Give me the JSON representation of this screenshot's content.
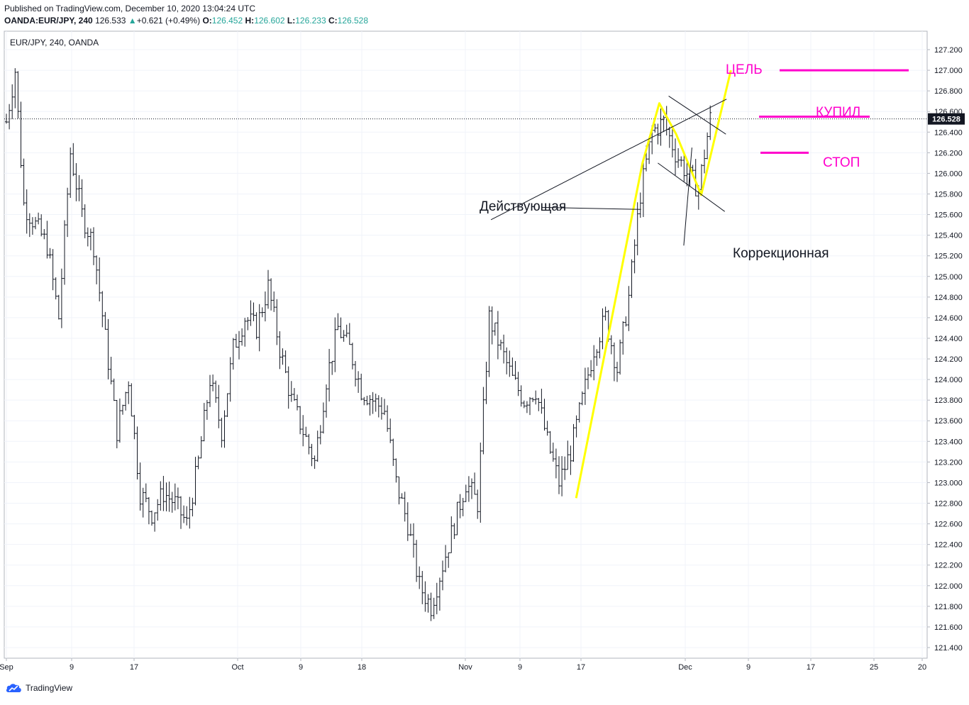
{
  "header": {
    "published": "Published on TradingView.com, December 10, 2020 13:04:24 UTC",
    "symbol": "OANDA:EUR/JPY, 240",
    "last": "126.533",
    "change": "+0.621 (+0.49%)",
    "o_label": "O:",
    "o_value": "126.452",
    "h_label": "H:",
    "h_value": "126.602",
    "l_label": "L:",
    "l_value": "126.233",
    "c_label": "C:",
    "c_value": "126.528"
  },
  "footer": {
    "brand": "TradingView"
  },
  "colors": {
    "accent_yellow": "#ffff00",
    "magenta": "#ff00cc",
    "up": "#26a69a",
    "grid": "#f0f3fa"
  },
  "chart_data": {
    "type": "ohlc",
    "title": "EUR/JPY, 240, OANDA",
    "last_price": 126.528,
    "last_price_label": "126.528",
    "ylim": [
      121.3,
      127.35
    ],
    "y_ticks": [
      121.4,
      121.6,
      121.8,
      122.0,
      122.2,
      122.4,
      122.6,
      122.8,
      123.0,
      123.2,
      123.4,
      123.6,
      123.8,
      124.0,
      124.2,
      124.4,
      124.6,
      124.8,
      125.0,
      125.2,
      125.4,
      125.6,
      125.8,
      126.0,
      126.2,
      126.4,
      126.6,
      126.8,
      127.0,
      127.2
    ],
    "x_tick_labels": [
      "Sep",
      "9",
      "17",
      "Oct",
      "9",
      "18",
      "Nov",
      "9",
      "17",
      "Dec",
      "9",
      "17",
      "25",
      "20"
    ],
    "price_path": [
      [
        0,
        126.5
      ],
      [
        3,
        127.0
      ],
      [
        6,
        125.7
      ],
      [
        10,
        125.5
      ],
      [
        14,
        125.3
      ],
      [
        18,
        124.6
      ],
      [
        22,
        126.2
      ],
      [
        26,
        125.6
      ],
      [
        30,
        125.3
      ],
      [
        34,
        124.4
      ],
      [
        38,
        123.5
      ],
      [
        42,
        124.0
      ],
      [
        46,
        122.9
      ],
      [
        50,
        122.7
      ],
      [
        54,
        122.9
      ],
      [
        58,
        122.8
      ],
      [
        62,
        122.6
      ],
      [
        66,
        123.2
      ],
      [
        70,
        124.0
      ],
      [
        74,
        123.5
      ],
      [
        78,
        124.3
      ],
      [
        82,
        124.6
      ],
      [
        86,
        124.5
      ],
      [
        90,
        124.9
      ],
      [
        94,
        124.3
      ],
      [
        98,
        123.8
      ],
      [
        102,
        123.5
      ],
      [
        106,
        123.2
      ],
      [
        110,
        124.0
      ],
      [
        114,
        124.5
      ],
      [
        118,
        124.3
      ],
      [
        122,
        123.9
      ],
      [
        126,
        123.8
      ],
      [
        130,
        123.7
      ],
      [
        134,
        123.0
      ],
      [
        138,
        122.6
      ],
      [
        142,
        122.0
      ],
      [
        146,
        121.8
      ],
      [
        150,
        122.2
      ],
      [
        154,
        122.6
      ],
      [
        158,
        123.0
      ],
      [
        162,
        122.8
      ],
      [
        166,
        124.6
      ],
      [
        170,
        124.3
      ],
      [
        174,
        124.0
      ],
      [
        178,
        123.8
      ],
      [
        182,
        123.9
      ],
      [
        186,
        123.4
      ],
      [
        190,
        123.0
      ],
      [
        194,
        123.3
      ],
      [
        198,
        123.8
      ],
      [
        202,
        124.3
      ],
      [
        206,
        124.6
      ],
      [
        210,
        124.1
      ],
      [
        214,
        124.8
      ],
      [
        218,
        125.8
      ],
      [
        222,
        126.4
      ],
      [
        226,
        126.5
      ],
      [
        230,
        126.2
      ],
      [
        234,
        126.0
      ],
      [
        238,
        125.85
      ],
      [
        242,
        126.53
      ]
    ],
    "overlay_lines": [
      {
        "kind": "impulse",
        "color": "#ffff00",
        "points": [
          [
            195.9,
            122.85
          ],
          [
            218.7,
            126.1
          ],
          [
            224.5,
            126.68
          ],
          [
            230.3,
            126.38
          ],
          [
            238.9,
            125.79
          ],
          [
            249.1,
            127.0
          ]
        ]
      },
      {
        "kind": "trendline",
        "name": "Действующая",
        "color": "#131722",
        "points": [
          [
            166.6,
            125.55
          ],
          [
            247.6,
            126.72
          ]
        ]
      },
      {
        "kind": "trendline",
        "color": "#131722",
        "points": [
          [
            227.7,
            126.75
          ],
          [
            247.4,
            126.38
          ]
        ]
      },
      {
        "kind": "trendline",
        "color": "#131722",
        "points": [
          [
            224.0,
            126.1
          ],
          [
            247.0,
            125.63
          ]
        ]
      },
      {
        "kind": "pointer",
        "color": "#131722",
        "points": [
          [
            184.0,
            125.67
          ],
          [
            218.2,
            125.65
          ]
        ]
      },
      {
        "kind": "pointer",
        "color": "#131722",
        "points": [
          [
            232.9,
            125.3
          ],
          [
            235.7,
            126.25
          ]
        ]
      }
    ],
    "levels": [
      {
        "label": "ЦЕЛЬ",
        "price": 127.0,
        "color": "#ff00cc"
      },
      {
        "label": "КУПИЛ",
        "price": 126.55,
        "color": "#ff00cc"
      },
      {
        "label": "СТОП",
        "price": 126.2,
        "color": "#ff00cc"
      }
    ],
    "annotations": [
      {
        "text": "Действующая",
        "price": 125.66
      },
      {
        "text": "Коррекционная",
        "price": 125.2
      }
    ]
  }
}
